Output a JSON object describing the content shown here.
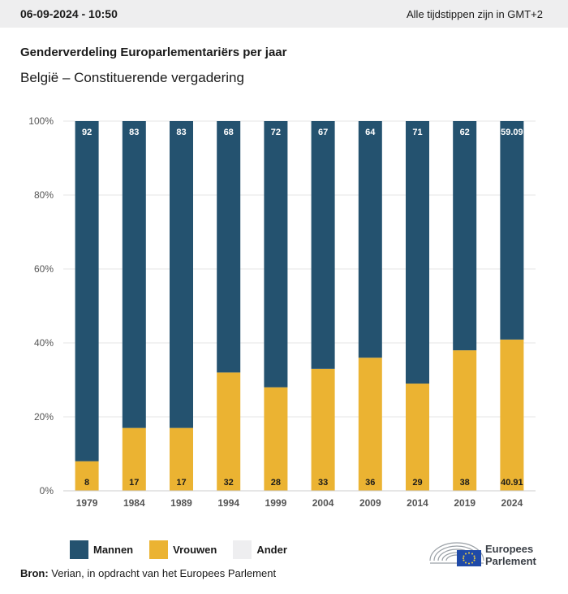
{
  "header": {
    "timestamp": "06-09-2024 - 10:50",
    "timezone_note": "Alle tijdstippen zijn in GMT+2"
  },
  "title": "Genderverdeling Europarlementariërs per jaar",
  "subtitle": "België – Constituerende vergadering",
  "colors": {
    "mannen": "#24526f",
    "vrouwen": "#ebb332",
    "ander": "#eeeef0",
    "grid": "#e6e6e6"
  },
  "chart_data": {
    "type": "bar",
    "stacked": true,
    "categories": [
      "1979",
      "1984",
      "1989",
      "1994",
      "1999",
      "2004",
      "2009",
      "2014",
      "2019",
      "2024"
    ],
    "series": [
      {
        "name": "Mannen",
        "values": [
          92,
          83,
          83,
          68,
          72,
          67,
          64,
          71,
          62,
          59.09
        ]
      },
      {
        "name": "Vrouwen",
        "values": [
          8,
          17,
          17,
          32,
          28,
          33,
          36,
          29,
          38,
          40.91
        ]
      },
      {
        "name": "Ander",
        "values": [
          0,
          0,
          0,
          0,
          0,
          0,
          0,
          0,
          0,
          0
        ]
      }
    ],
    "labels_mannen": [
      "92",
      "83",
      "83",
      "68",
      "72",
      "67",
      "64",
      "71",
      "62",
      "59.09"
    ],
    "labels_vrouwen": [
      "8",
      "17",
      "17",
      "32",
      "28",
      "33",
      "36",
      "29",
      "38",
      "40.91"
    ],
    "yticks": [
      "0%",
      "20%",
      "40%",
      "60%",
      "80%",
      "100%"
    ],
    "ylim": [
      0,
      100
    ],
    "grid": true,
    "legend_position": "bottom-left"
  },
  "legend": [
    {
      "label": "Mannen"
    },
    {
      "label": "Vrouwen"
    },
    {
      "label": "Ander"
    }
  ],
  "source": {
    "prefix": "Bron:",
    "text": " Verian, in opdracht van het Europees Parlement"
  },
  "logo": {
    "line1": "Europees",
    "line2": "Parlement"
  }
}
